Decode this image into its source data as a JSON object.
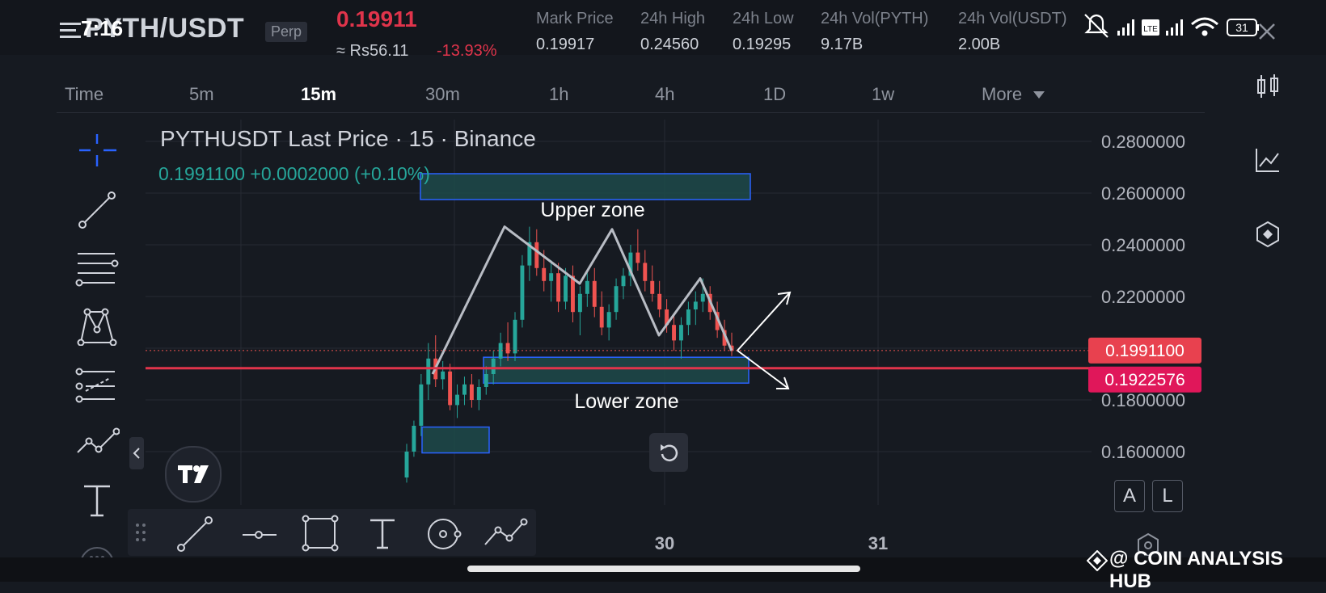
{
  "status_bar": {
    "time": "7:16",
    "battery": "31"
  },
  "header": {
    "symbol": "PYTH/USDT",
    "contract_type": "Perp",
    "last_price": "0.19911",
    "approx_value": "≈ Rs56.11",
    "change_pct": "-13.93%",
    "stats": [
      {
        "label": "Mark Price",
        "value": "0.19917"
      },
      {
        "label": "24h High",
        "value": "0.24560"
      },
      {
        "label": "24h Low",
        "value": "0.19295"
      },
      {
        "label": "24h Vol(PYTH)",
        "value": "9.17B"
      },
      {
        "label": "24h Vol(USDT)",
        "value": "2.00B"
      }
    ]
  },
  "timeframes": {
    "items": [
      "Time",
      "5m",
      "15m",
      "30m",
      "1h",
      "4h",
      "1D",
      "1w",
      "More"
    ],
    "active": "15m"
  },
  "colors": {
    "up": "#26a69a",
    "down": "#ef5350",
    "accent_red": "#e0344b",
    "zone_fill": "#1d4a4a",
    "zone_border": "#2962ff",
    "pattern_line": "#b8bcc4"
  },
  "right_toolbar": [
    "candles-icon",
    "indicator-icon",
    "settings-hex-icon"
  ],
  "left_toolbar": [
    "crosshair-icon",
    "trendline-icon",
    "fib-icon",
    "pattern-icon",
    "forecast-icon",
    "path-icon",
    "text-icon"
  ],
  "bottom_toolbar": [
    "drag-handle-icon",
    "line-icon",
    "horizontal-ray-icon",
    "rectangle-icon",
    "text-tool-icon",
    "circle-tool-icon",
    "path-tool-icon"
  ],
  "scale_buttons": {
    "auto": "A",
    "log": "L"
  },
  "watermark": "@ COIN ANALYSIS HUB",
  "chart_data": {
    "type": "candlestick",
    "title": "PYTHUSDT Last Price · 15 · Binance",
    "legend_values": "0.1991100  +0.0002000 (+0.10%)",
    "y_axis": {
      "ticks": [
        "0.2800000",
        "0.2600000",
        "0.2400000",
        "0.2200000",
        "0.1800000",
        "0.1600000"
      ],
      "ylim": [
        0.148,
        0.284
      ]
    },
    "x_axis": {
      "ticks": [
        "30",
        "31"
      ]
    },
    "price_labels": [
      {
        "value": 0.19911,
        "text": "0.1991100",
        "style": "last-price"
      },
      {
        "value": 0.1922576,
        "text": "0.1922576",
        "style": "horizontal-line"
      }
    ],
    "horizontal_line": 0.1922576,
    "zones": [
      {
        "label": "Upper zone",
        "top": 0.2675,
        "bottom": 0.2575
      },
      {
        "label": "Lower zone",
        "top": 0.1965,
        "bottom": 0.1865
      },
      {
        "label": "",
        "top": 0.1695,
        "bottom": 0.1595
      }
    ],
    "pattern_points": [
      [
        0.19,
        0
      ],
      [
        0.247,
        1
      ],
      [
        0.225,
        2
      ],
      [
        0.246,
        3
      ],
      [
        0.205,
        4
      ],
      [
        0.227,
        5
      ],
      [
        0.199,
        6
      ]
    ],
    "candles_ohlc": [
      [
        0.15,
        0.163,
        0.148,
        0.16
      ],
      [
        0.16,
        0.172,
        0.158,
        0.17
      ],
      [
        0.17,
        0.19,
        0.166,
        0.186
      ],
      [
        0.186,
        0.202,
        0.18,
        0.196
      ],
      [
        0.196,
        0.205,
        0.185,
        0.188
      ],
      [
        0.188,
        0.195,
        0.184,
        0.191
      ],
      [
        0.191,
        0.194,
        0.176,
        0.178
      ],
      [
        0.178,
        0.186,
        0.173,
        0.182
      ],
      [
        0.182,
        0.189,
        0.178,
        0.186
      ],
      [
        0.186,
        0.19,
        0.177,
        0.18
      ],
      [
        0.18,
        0.188,
        0.176,
        0.185
      ],
      [
        0.185,
        0.193,
        0.182,
        0.19
      ],
      [
        0.19,
        0.199,
        0.186,
        0.196
      ],
      [
        0.196,
        0.206,
        0.193,
        0.202
      ],
      [
        0.202,
        0.21,
        0.195,
        0.198
      ],
      [
        0.198,
        0.214,
        0.195,
        0.211
      ],
      [
        0.211,
        0.236,
        0.208,
        0.232
      ],
      [
        0.232,
        0.247,
        0.226,
        0.241
      ],
      [
        0.241,
        0.246,
        0.228,
        0.231
      ],
      [
        0.231,
        0.238,
        0.222,
        0.226
      ],
      [
        0.226,
        0.234,
        0.218,
        0.229
      ],
      [
        0.229,
        0.233,
        0.214,
        0.218
      ],
      [
        0.218,
        0.231,
        0.215,
        0.228
      ],
      [
        0.228,
        0.232,
        0.21,
        0.214
      ],
      [
        0.214,
        0.224,
        0.205,
        0.221
      ],
      [
        0.221,
        0.23,
        0.216,
        0.226
      ],
      [
        0.226,
        0.231,
        0.212,
        0.216
      ],
      [
        0.216,
        0.222,
        0.205,
        0.208
      ],
      [
        0.208,
        0.217,
        0.203,
        0.214
      ],
      [
        0.214,
        0.227,
        0.211,
        0.224
      ],
      [
        0.224,
        0.231,
        0.219,
        0.228
      ],
      [
        0.228,
        0.24,
        0.224,
        0.237
      ],
      [
        0.237,
        0.246,
        0.23,
        0.233
      ],
      [
        0.233,
        0.238,
        0.222,
        0.226
      ],
      [
        0.226,
        0.232,
        0.218,
        0.221
      ],
      [
        0.221,
        0.226,
        0.212,
        0.215
      ],
      [
        0.215,
        0.219,
        0.206,
        0.209
      ],
      [
        0.209,
        0.213,
        0.199,
        0.203
      ],
      [
        0.203,
        0.212,
        0.196,
        0.209
      ],
      [
        0.209,
        0.218,
        0.205,
        0.215
      ],
      [
        0.215,
        0.222,
        0.209,
        0.218
      ],
      [
        0.218,
        0.227,
        0.214,
        0.221
      ],
      [
        0.221,
        0.224,
        0.211,
        0.214
      ],
      [
        0.214,
        0.218,
        0.204,
        0.207
      ],
      [
        0.207,
        0.211,
        0.199,
        0.201
      ],
      [
        0.201,
        0.206,
        0.197,
        0.199
      ]
    ]
  }
}
